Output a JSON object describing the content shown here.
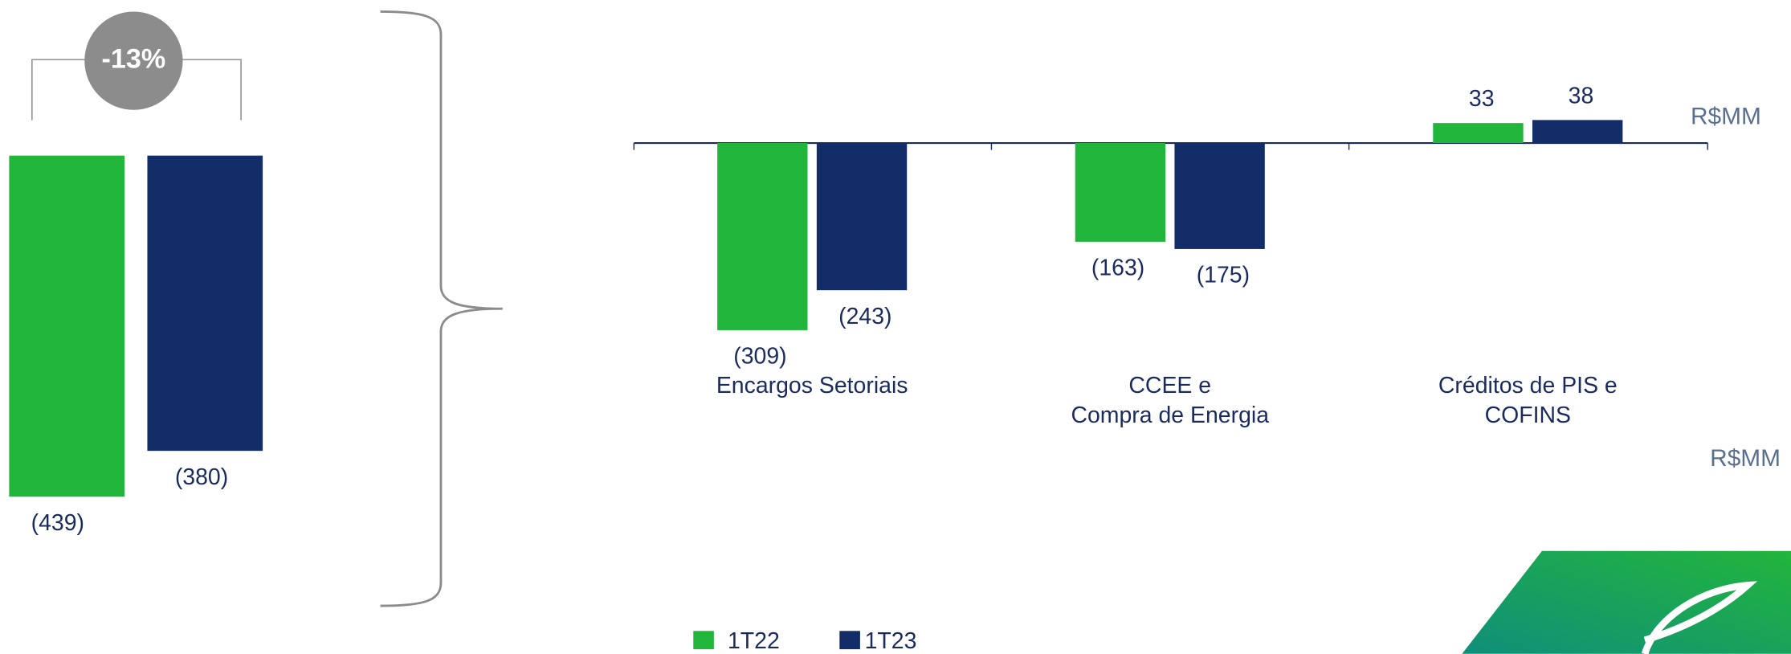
{
  "chart_data": [
    {
      "type": "bar",
      "annotation": "-13%",
      "unit": "R$MM",
      "values": [
        -439,
        -380
      ],
      "value_labels": [
        "(439)",
        "(380)"
      ],
      "colors": [
        "#22b53c",
        "#132d69"
      ],
      "ylim": [
        -500,
        0
      ]
    },
    {
      "type": "grouped_bar",
      "unit": "R$MM",
      "categories": [
        "Encargos Setoriais",
        "CCEE e\nCompra de Energia",
        "Créditos de PIS e\nCOFINS"
      ],
      "series": [
        {
          "name": "1T22",
          "color": "#22b53c",
          "values": [
            -309,
            -163,
            33
          ],
          "value_labels": [
            "(309)",
            "(163)",
            "33"
          ]
        },
        {
          "name": "1T23",
          "color": "#132d69",
          "values": [
            -243,
            -175,
            38
          ],
          "value_labels": [
            "(243)",
            "(175)",
            "38"
          ]
        }
      ],
      "ylim": [
        -400,
        100
      ]
    }
  ]
}
